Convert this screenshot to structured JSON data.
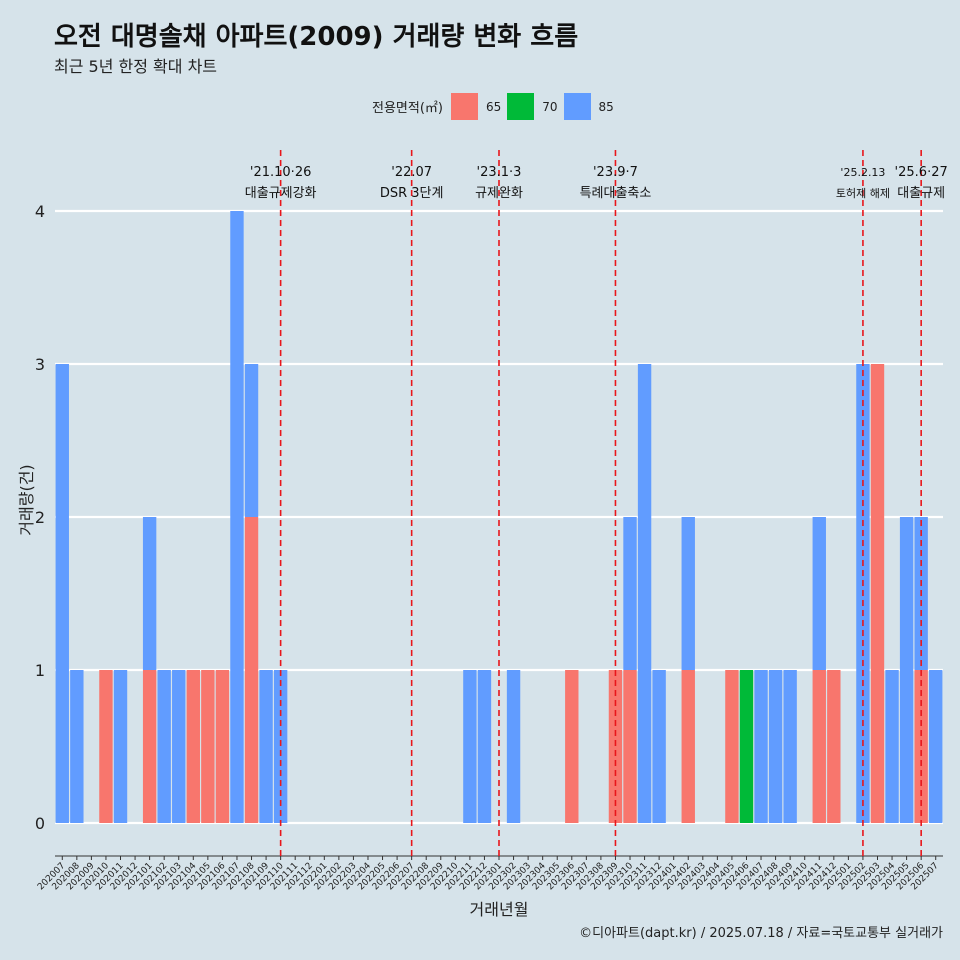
{
  "title": "오전 대명솔채 아파트(2009) 거래량 변화 흐름",
  "subtitle": "최근 5년 한정 확대 차트",
  "caption": "©디아파트(dapt.kr) / 2025.07.18 / 자료=국토교통부 실거래가",
  "legend": {
    "title": "전용면적(㎡)",
    "items": [
      {
        "label": "65",
        "color": "#f8766d"
      },
      {
        "label": "70",
        "color": "#00ba38"
      },
      {
        "label": "85",
        "color": "#619cff"
      }
    ]
  },
  "chart_data": {
    "type": "bar",
    "stacked": true,
    "xlabel": "거래년월",
    "ylabel": "거래량(건)",
    "ylim": [
      0,
      4
    ],
    "yticks": [
      "0",
      "1",
      "2",
      "3",
      "4"
    ],
    "grid": true,
    "legend_position": "top",
    "categories": [
      "202007",
      "202008",
      "202009",
      "202010",
      "202011",
      "202012",
      "202101",
      "202102",
      "202103",
      "202104",
      "202105",
      "202106",
      "202107",
      "202108",
      "202109",
      "202110",
      "202111",
      "202112",
      "202201",
      "202202",
      "202203",
      "202204",
      "202205",
      "202206",
      "202207",
      "202208",
      "202209",
      "202210",
      "202211",
      "202212",
      "202301",
      "202302",
      "202303",
      "202304",
      "202305",
      "202306",
      "202307",
      "202308",
      "202309",
      "202310",
      "202311",
      "202312",
      "202401",
      "202402",
      "202403",
      "202404",
      "202405",
      "202406",
      "202407",
      "202408",
      "202409",
      "202410",
      "202411",
      "202412",
      "202501",
      "202502",
      "202503",
      "202504",
      "202505",
      "202506",
      "202507"
    ],
    "series": [
      {
        "name": "65",
        "color": "#f8766d",
        "values": [
          0,
          0,
          0,
          1,
          0,
          0,
          1,
          0,
          0,
          1,
          1,
          1,
          0,
          2,
          0,
          0,
          0,
          0,
          0,
          0,
          0,
          0,
          0,
          0,
          0,
          0,
          0,
          0,
          0,
          0,
          0,
          0,
          0,
          0,
          0,
          1,
          0,
          0,
          1,
          1,
          0,
          0,
          0,
          1,
          0,
          0,
          1,
          0,
          0,
          0,
          0,
          0,
          1,
          1,
          0,
          0,
          3,
          0,
          0,
          1,
          0
        ]
      },
      {
        "name": "70",
        "color": "#00ba38",
        "values": [
          0,
          0,
          0,
          0,
          0,
          0,
          0,
          0,
          0,
          0,
          0,
          0,
          0,
          0,
          0,
          0,
          0,
          0,
          0,
          0,
          0,
          0,
          0,
          0,
          0,
          0,
          0,
          0,
          0,
          0,
          0,
          0,
          0,
          0,
          0,
          0,
          0,
          0,
          0,
          0,
          0,
          0,
          0,
          0,
          0,
          0,
          0,
          1,
          0,
          0,
          0,
          0,
          0,
          0,
          0,
          0,
          0,
          0,
          0,
          0,
          0
        ]
      },
      {
        "name": "85",
        "color": "#619cff",
        "values": [
          3,
          1,
          0,
          0,
          1,
          0,
          1,
          1,
          1,
          0,
          0,
          0,
          4,
          1,
          1,
          1,
          0,
          0,
          0,
          0,
          0,
          0,
          0,
          0,
          0,
          0,
          0,
          0,
          1,
          1,
          0,
          1,
          0,
          0,
          0,
          0,
          0,
          0,
          0,
          1,
          3,
          1,
          0,
          1,
          0,
          0,
          0,
          0,
          1,
          1,
          1,
          0,
          1,
          0,
          0,
          3,
          0,
          1,
          2,
          1,
          1
        ]
      }
    ],
    "annotations": [
      {
        "x": "202110",
        "date": "'21.10·26",
        "label": "대출규제강화"
      },
      {
        "x": "202207",
        "date": "'22.07",
        "label": "DSR 3단계"
      },
      {
        "x": "202301",
        "date": "'23.1·3",
        "label": "규제완화"
      },
      {
        "x": "202309",
        "date": "'23.9·7",
        "label": "특례대출축소"
      },
      {
        "x": "202502",
        "date": "'25.2.13",
        "label": "토허제 해제"
      },
      {
        "x": "202506",
        "date": "'25.6·27",
        "label": "대출규제"
      }
    ]
  }
}
